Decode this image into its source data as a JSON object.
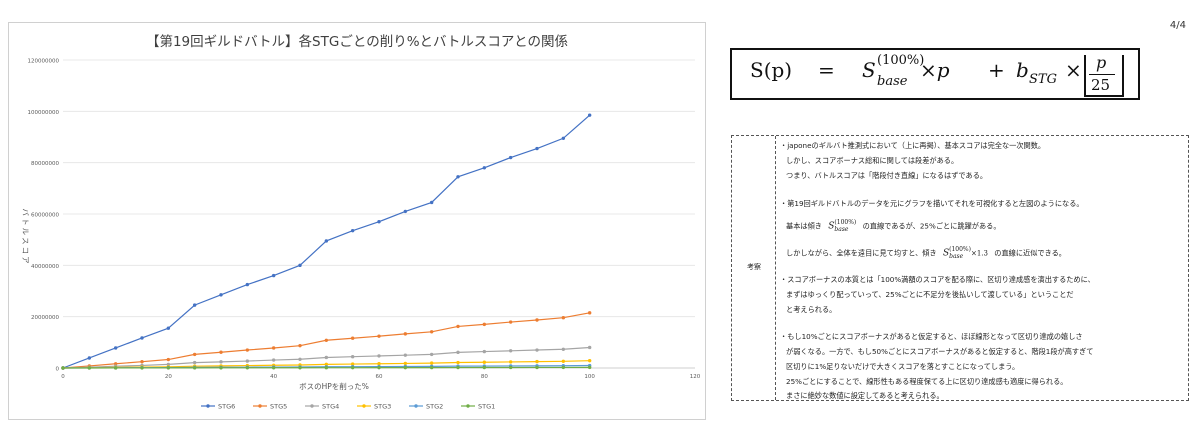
{
  "page_number": "4/4",
  "chart_data": {
    "type": "line",
    "title": "【第19回ギルドバトル】各STGごとの削り%とバトルスコアとの関係",
    "xlabel": "ボスのHPを削った%",
    "ylabel": "バトルスコア",
    "xlim": [
      0,
      120
    ],
    "ylim": [
      0,
      120000000
    ],
    "x_ticks": [
      0,
      20,
      40,
      60,
      80,
      100,
      120
    ],
    "y_ticks": [
      0,
      20000000,
      40000000,
      60000000,
      80000000,
      100000000,
      120000000
    ],
    "y_tick_labels": [
      "0",
      "20000000",
      "40000000",
      "60000000",
      "80000000",
      "100000000",
      "120000000"
    ],
    "grid": true,
    "legend": "bottom",
    "x": [
      0,
      5,
      10,
      15,
      20,
      25,
      30,
      35,
      40,
      45,
      50,
      55,
      60,
      65,
      70,
      75,
      80,
      85,
      90,
      95,
      100
    ],
    "series": [
      {
        "name": "STG6",
        "color": "#4472C4",
        "values": [
          0,
          3900000,
          7800000,
          11700000,
          15500000,
          24500000,
          28500000,
          32500000,
          36000000,
          40000000,
          49500000,
          53500000,
          57000000,
          61000000,
          64500000,
          74500000,
          78000000,
          82000000,
          85500000,
          89500000,
          98500000
        ]
      },
      {
        "name": "STG5",
        "color": "#ED7D31",
        "values": [
          0,
          800000,
          1650000,
          2450000,
          3300000,
          5300000,
          6150000,
          7000000,
          7800000,
          8700000,
          10800000,
          11600000,
          12400000,
          13300000,
          14100000,
          16200000,
          17000000,
          17900000,
          18700000,
          19600000,
          21500000
        ]
      },
      {
        "name": "STG4",
        "color": "#A5A5A5",
        "values": [
          0,
          300000,
          700000,
          1000000,
          1400000,
          2100000,
          2400000,
          2700000,
          3100000,
          3400000,
          4100000,
          4400000,
          4700000,
          5000000,
          5300000,
          6100000,
          6400000,
          6700000,
          7000000,
          7300000,
          8000000
        ]
      },
      {
        "name": "STG3",
        "color": "#FFC000",
        "values": [
          0,
          100000,
          230000,
          350000,
          470000,
          700000,
          820000,
          940000,
          1060000,
          1180000,
          1420000,
          1540000,
          1660000,
          1780000,
          1900000,
          2130000,
          2250000,
          2370000,
          2490000,
          2610000,
          2850000
        ]
      },
      {
        "name": "STG2",
        "color": "#5B9BD5",
        "values": [
          0,
          40000,
          80000,
          120000,
          160000,
          240000,
          280000,
          320000,
          360000,
          400000,
          480000,
          520000,
          560000,
          600000,
          640000,
          720000,
          760000,
          800000,
          840000,
          880000,
          960000
        ]
      },
      {
        "name": "STG1",
        "color": "#70AD47",
        "values": [
          0,
          10000,
          20000,
          30000,
          40000,
          60000,
          70000,
          80000,
          90000,
          100000,
          120000,
          130000,
          140000,
          150000,
          160000,
          180000,
          190000,
          200000,
          210000,
          220000,
          240000
        ]
      }
    ]
  },
  "formula": {
    "lhs": "S(p)",
    "eq": "=",
    "s": "S",
    "s_sup": "(100%)",
    "s_sub": "base",
    "times_p": "×p",
    "plus": "+",
    "b": "b",
    "b_sub": "STG",
    "times": "×",
    "frac_num": "p",
    "frac_den": "25"
  },
  "notes": {
    "label": "考察",
    "lines": [
      "・japoneのギルバト推測式において（上に再掲）、基本スコアは完全な一次関数。",
      "しかし、スコアボーナス総和に関しては段差がある。",
      "つまり、バトルスコアは「階段付き直線」になるはずである。",
      "・第19回ギルドバトルのデータを元にグラフを描いてそれを可視化すると左図のようになる。",
      "基本は傾き",
      "の直線であるが、25%ごとに跳躍がある。",
      "しかしながら、全体を遠目に見て均すと、傾き",
      "の直線に近似できる。",
      "・スコアボーナスの本質とは「100%満額のスコアを配る際に、区切り達成感を演出するために、",
      "まずはゆっくり配っていって、25%ごとに不足分を後払いして渡している」ということだ",
      "と考えられる。",
      "・もし10%ごとにスコアボーナスがあると仮定すると、ほぼ線形となって区切り達成の嬉しさ",
      "が弱くなる。一方で、もし50%ごとにスコアボーナスがあると仮定すると、階段1段が高すぎて",
      "区切りに1%足りないだけで大きくスコアを落とすことになってしまう。",
      "25%ごとにすることで、線形性もある程度保てる上に区切り達成感も適度に得られる。",
      "まさに絶妙な数値に設定してあると考えられる。"
    ],
    "inline_s": "S",
    "inline_sup": "(100%)",
    "inline_sub": "base",
    "inline_mult": "×1.3"
  }
}
